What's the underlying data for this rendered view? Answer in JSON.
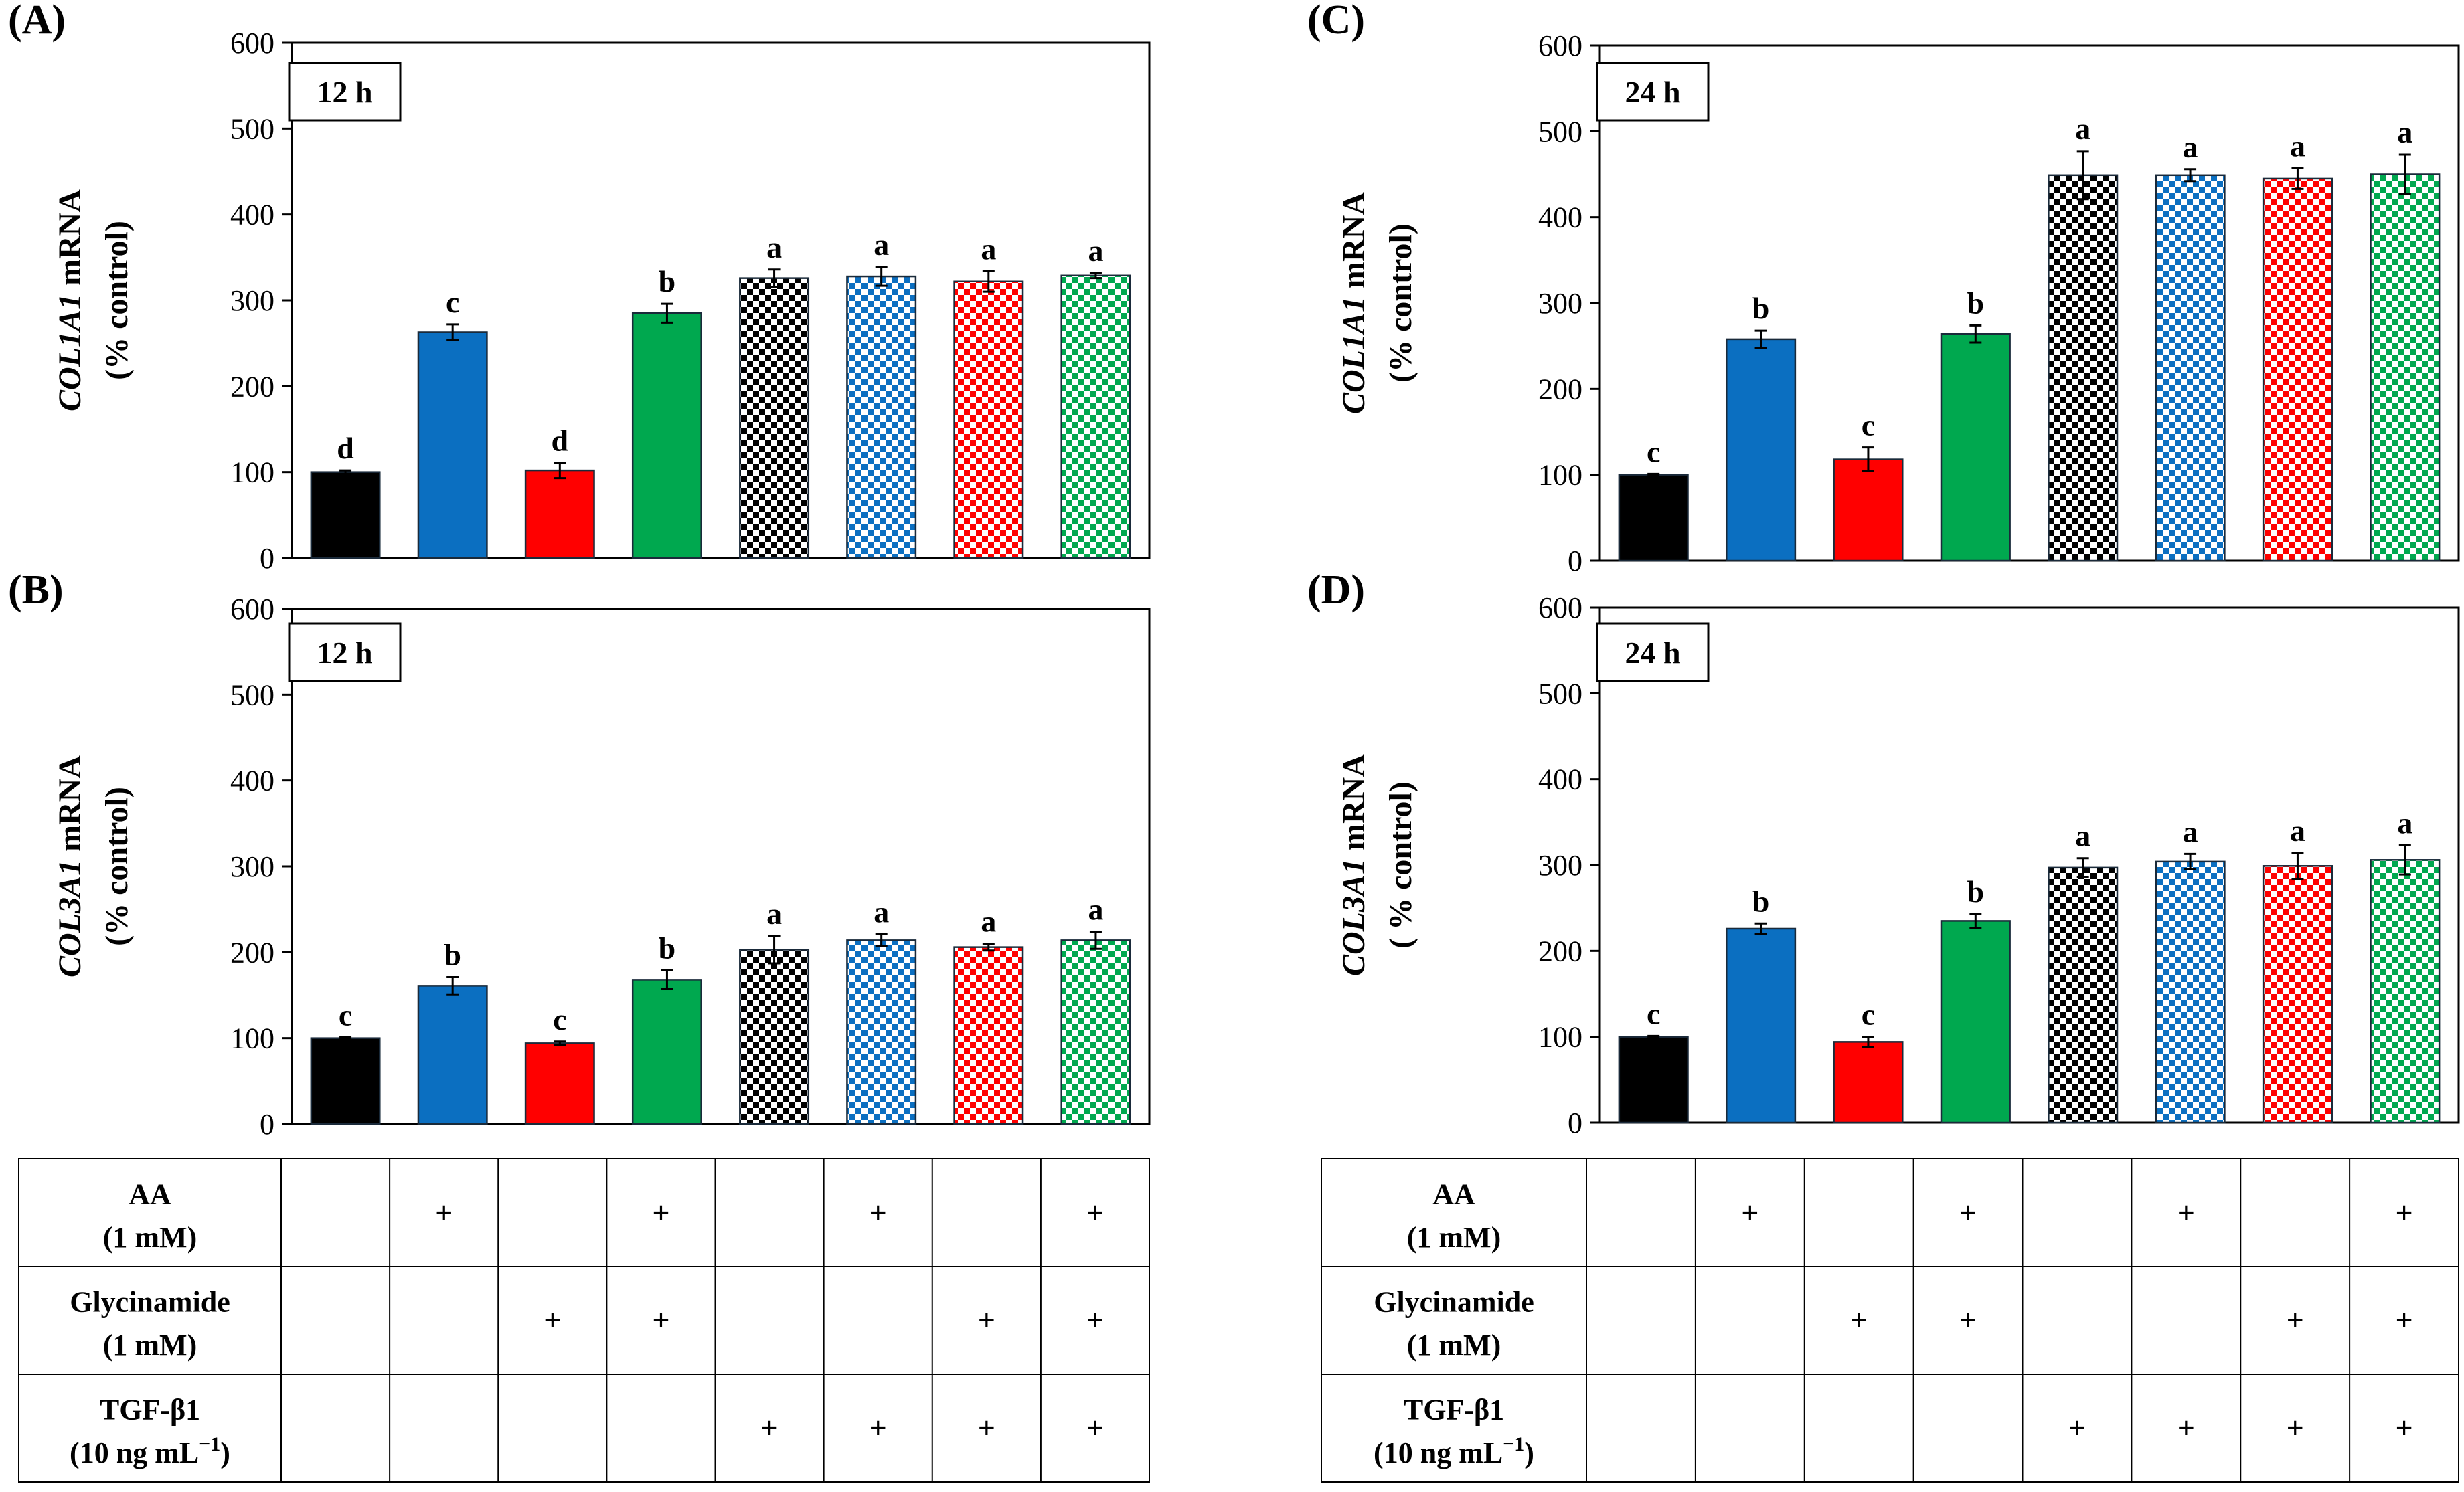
{
  "colors": {
    "black": "#000000",
    "blue": "#0b6fc1",
    "red": "#ff0000",
    "green": "#00a84f"
  },
  "chart_data": [
    {
      "type": "bar",
      "panel_label": "(A)",
      "time_label": "12 h",
      "gene": "COL1A1",
      "ylabel_unit": " mRNA",
      "ylabel_line2": "(% control)",
      "ylim": [
        0,
        600
      ],
      "yticks": [
        "0",
        "100",
        "200",
        "300",
        "400",
        "500",
        "600"
      ],
      "grid": false,
      "values": [
        100,
        263,
        102,
        285,
        326,
        328,
        322,
        329
      ],
      "errors": [
        2,
        9,
        9,
        11,
        10,
        11,
        12,
        3
      ],
      "letters": [
        "d",
        "c",
        "d",
        "b",
        "a",
        "a",
        "a",
        "a"
      ]
    },
    {
      "type": "bar",
      "panel_label": "(B)",
      "time_label": "12 h",
      "gene": "COL3A1",
      "ylabel_unit": " mRNA",
      "ylabel_line2": "(% control)",
      "ylim": [
        0,
        600
      ],
      "yticks": [
        "0",
        "100",
        "200",
        "300",
        "400",
        "500",
        "600"
      ],
      "grid": false,
      "values": [
        100,
        161,
        94,
        168,
        203,
        214,
        206,
        214
      ],
      "errors": [
        1,
        10,
        2,
        11,
        16,
        7,
        4,
        10
      ],
      "letters": [
        "c",
        "b",
        "c",
        "b",
        "a",
        "a",
        "a",
        "a"
      ]
    },
    {
      "type": "bar",
      "panel_label": "(C)",
      "time_label": "24 h",
      "gene": "COL1A1",
      "ylabel_unit": " mRNA",
      "ylabel_line2": "(% control)",
      "ylim": [
        0,
        600
      ],
      "yticks": [
        "0",
        "100",
        "200",
        "300",
        "400",
        "500",
        "600"
      ],
      "grid": false,
      "values": [
        100,
        258,
        118,
        264,
        449,
        449,
        445,
        450
      ],
      "errors": [
        1,
        10,
        14,
        10,
        28,
        7,
        12,
        23
      ],
      "letters": [
        "c",
        "b",
        "c",
        "b",
        "a",
        "a",
        "a",
        "a"
      ]
    },
    {
      "type": "bar",
      "panel_label": "(D)",
      "time_label": "24 h",
      "gene": "COL3A1",
      "ylabel_unit": " mRNA",
      "ylabel_line2": "( % control)",
      "ylim": [
        0,
        600
      ],
      "yticks": [
        "0",
        "100",
        "200",
        "300",
        "400",
        "500",
        "600"
      ],
      "grid": false,
      "values": [
        100,
        226,
        94,
        235,
        297,
        304,
        299,
        306
      ],
      "errors": [
        1,
        6,
        6,
        8,
        11,
        9,
        15,
        17
      ],
      "letters": [
        "c",
        "b",
        "c",
        "b",
        "a",
        "a",
        "a",
        "a"
      ]
    }
  ],
  "bar_styles": [
    {
      "color": "black",
      "pattern": "solid"
    },
    {
      "color": "blue",
      "pattern": "solid"
    },
    {
      "color": "red",
      "pattern": "solid"
    },
    {
      "color": "green",
      "pattern": "solid"
    },
    {
      "color": "black",
      "pattern": "checker"
    },
    {
      "color": "blue",
      "pattern": "checker"
    },
    {
      "color": "red",
      "pattern": "checker"
    },
    {
      "color": "green",
      "pattern": "checker"
    }
  ],
  "treatment_table": {
    "rows": [
      {
        "name": "AA",
        "conc": "(1 mM)",
        "marks": [
          false,
          true,
          false,
          true,
          false,
          true,
          false,
          true
        ]
      },
      {
        "name": "Glycinamide",
        "conc": "(1 mM)",
        "marks": [
          false,
          false,
          true,
          true,
          false,
          false,
          true,
          true
        ]
      },
      {
        "name": "TGF-β1",
        "conc": "(10 ng mL",
        "conc_sup": "−1",
        "conc_end": ")",
        "marks": [
          false,
          false,
          false,
          false,
          true,
          true,
          true,
          true
        ]
      }
    ],
    "plus_symbol": "+"
  }
}
